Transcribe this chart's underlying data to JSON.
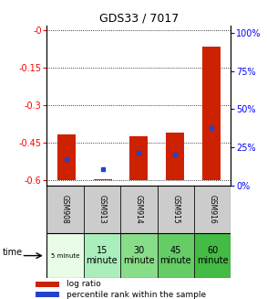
{
  "title": "GDS33 / 7017",
  "samples": [
    "GSM908",
    "GSM913",
    "GSM914",
    "GSM915",
    "GSM916"
  ],
  "time_labels_line1": [
    "5 minute",
    "15",
    "30",
    "45",
    "60"
  ],
  "time_labels_line2": [
    "",
    "minute",
    "minute",
    "minute",
    "minute"
  ],
  "log_ratios": [
    -0.415,
    -0.595,
    -0.425,
    -0.41,
    -0.065
  ],
  "percentile_values": [
    -0.515,
    -0.555,
    -0.49,
    -0.495,
    -0.39
  ],
  "ylim_left": [
    -0.62,
    0.02
  ],
  "ylim_right": [
    0,
    105
  ],
  "yticks_left": [
    0.0,
    -0.15,
    -0.3,
    -0.45,
    -0.6
  ],
  "yticks_right": [
    0,
    25,
    50,
    75,
    100
  ],
  "bar_color": "#cc2200",
  "dot_color": "#2244cc",
  "sample_bg_color": "#cccccc",
  "time_colors": [
    "#e8fce8",
    "#aaeebb",
    "#88dd88",
    "#66cc66",
    "#44bb44"
  ],
  "bar_width": 0.5,
  "bar_bottom": -0.6,
  "legend_items": [
    {
      "label": "log ratio",
      "color": "#cc2200"
    },
    {
      "label": "percentile rank within the sample",
      "color": "#2244cc"
    }
  ]
}
